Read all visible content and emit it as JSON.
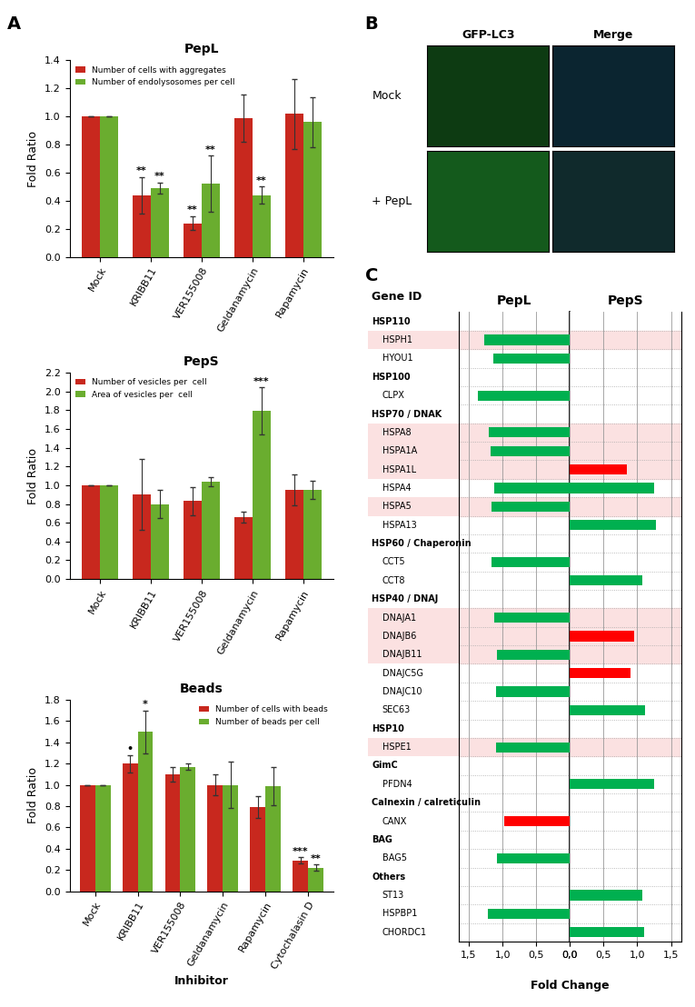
{
  "panel_labels": [
    "A",
    "B",
    "C"
  ],
  "image_panel": {
    "columns": [
      "GFP-LC3",
      "Merge"
    ],
    "rows": [
      "Mock",
      "+ PepL"
    ]
  },
  "chart_data": [
    {
      "type": "bar",
      "title": "PepL",
      "ylabel": "Fold Ratio",
      "legend": "upper left",
      "categories": [
        "Mock",
        "KRIBB11",
        "VER155008",
        "Geldanamycin",
        "Rapamycin"
      ],
      "ylim": [
        0,
        1.4
      ],
      "yticks": [
        {
          "value": 0,
          "label": "0.0"
        },
        0.2,
        0.4,
        0.6,
        0.8,
        {
          "value": 1,
          "label": "1.0"
        },
        1.2,
        1.4
      ],
      "series": [
        {
          "name": "Number of cells with aggregates",
          "color": "#c8281e",
          "values": [
            1.0,
            0.44,
            0.24,
            0.99,
            1.02
          ],
          "errors": [
            0,
            0.13,
            0.05,
            0.17,
            0.25
          ],
          "annotations": [
            null,
            "**",
            "**",
            null,
            null
          ]
        },
        {
          "name": "Number of endolysosomes per cell",
          "color": "#6aad2f",
          "values": [
            1.0,
            0.49,
            0.52,
            0.44,
            0.96
          ],
          "errors": [
            0,
            0.04,
            0.2,
            0.06,
            0.18
          ],
          "annotations": [
            null,
            "**",
            "**",
            "**",
            null
          ]
        }
      ]
    },
    {
      "type": "bar",
      "title": "PepS",
      "ylabel": "Fold Ratio",
      "legend": "upper left",
      "categories": [
        "Mock",
        "KRIBB11",
        "VER155008",
        "Geldanamycin",
        "Rapamycin"
      ],
      "ylim": [
        0,
        2.2
      ],
      "yticks": [
        {
          "value": 0,
          "label": "0.0"
        },
        0.2,
        0.4,
        0.6,
        0.8,
        {
          "value": 1,
          "label": "1.0"
        },
        1.2,
        1.4,
        1.6,
        1.8,
        {
          "value": 2,
          "label": "2.0"
        },
        2.2
      ],
      "series": [
        {
          "name": "Number of vesicles per  cell",
          "color": "#c8281e",
          "values": [
            1.0,
            0.9,
            0.83,
            0.66,
            0.95
          ],
          "errors": [
            0,
            0.38,
            0.15,
            0.06,
            0.16
          ],
          "annotations": [
            null,
            null,
            null,
            null,
            null
          ]
        },
        {
          "name": "Area of vesicles per  cell",
          "color": "#6aad2f",
          "values": [
            1.0,
            0.8,
            1.04,
            1.79,
            0.95
          ],
          "errors": [
            0,
            0.15,
            0.05,
            0.25,
            0.1
          ],
          "annotations": [
            null,
            null,
            null,
            "***",
            null
          ]
        }
      ]
    },
    {
      "type": "bar",
      "title": "Beads",
      "ylabel": "Fold Ratio",
      "xlabel": "Inhibitor",
      "legend": "upper right",
      "categories": [
        "Mock",
        "KRIBB11",
        "VER155008",
        "Geldanamycin",
        "Rapamycin",
        "Cytochalasin D"
      ],
      "ylim": [
        0,
        1.8
      ],
      "yticks": [
        {
          "value": 0,
          "label": "0.0"
        },
        0.2,
        0.4,
        0.6,
        0.8,
        {
          "value": 1,
          "label": "1.0"
        },
        1.2,
        1.4,
        1.6,
        1.8
      ],
      "series": [
        {
          "name": "Number of cells with beads",
          "color": "#c8281e",
          "values": [
            1.0,
            1.2,
            1.1,
            1.0,
            0.79,
            0.29
          ],
          "errors": [
            0,
            0.08,
            0.07,
            0.1,
            0.1,
            0.03
          ],
          "annotations": [
            null,
            "•",
            null,
            null,
            null,
            "***"
          ]
        },
        {
          "name": "Number of beads per cell",
          "color": "#6aad2f",
          "values": [
            1.0,
            1.5,
            1.17,
            1.0,
            0.99,
            0.22
          ],
          "errors": [
            0,
            0.2,
            0.03,
            0.22,
            0.18,
            0.03
          ],
          "annotations": [
            null,
            "*",
            null,
            null,
            null,
            "**"
          ]
        }
      ]
    },
    {
      "type": "bar",
      "orientation": "horizontal",
      "ylabel": "Gene ID",
      "xlabel": "Fold Change",
      "grid": true,
      "xlim": [
        0,
        1.65
      ],
      "xticks": [
        {
          "value": 0,
          "label": "0,0"
        },
        {
          "value": 0.5,
          "label": "0,5"
        },
        {
          "value": 1,
          "label": "1,0"
        },
        {
          "value": 1.5,
          "label": "1,5"
        }
      ],
      "series_names": [
        "PepL",
        "PepS"
      ],
      "highlight_color": "#fbe1e1",
      "groups": [
        {
          "name": "HSP110",
          "genes": [
            {
              "name": "HSPH1",
              "highlight": true,
              "values": [
                1.27,
                null
              ],
              "colors": [
                "#00b050",
                null
              ]
            },
            {
              "name": "HYOU1",
              "highlight": false,
              "values": [
                1.13,
                null
              ],
              "colors": [
                "#00b050",
                null
              ]
            }
          ]
        },
        {
          "name": "HSP100",
          "genes": [
            {
              "name": "CLPX",
              "highlight": false,
              "values": [
                1.37,
                null
              ],
              "colors": [
                "#00b050",
                null
              ]
            }
          ]
        },
        {
          "name": "HSP70 / DNAK",
          "genes": [
            {
              "name": "HSPA8",
              "highlight": true,
              "values": [
                1.2,
                null
              ],
              "colors": [
                "#00b050",
                null
              ]
            },
            {
              "name": "HSPA1A",
              "highlight": true,
              "values": [
                1.18,
                null
              ],
              "colors": [
                "#00b050",
                null
              ]
            },
            {
              "name": "HSPA1L",
              "highlight": true,
              "values": [
                null,
                0.85
              ],
              "colors": [
                null,
                "#ff0000"
              ]
            },
            {
              "name": "HSPA4",
              "highlight": false,
              "values": [
                1.12,
                1.25
              ],
              "colors": [
                "#00b050",
                "#00b050"
              ]
            },
            {
              "name": "HSPA5",
              "highlight": true,
              "values": [
                1.17,
                null
              ],
              "colors": [
                "#00b050",
                null
              ]
            },
            {
              "name": "HSPA13",
              "highlight": false,
              "values": [
                null,
                1.27
              ],
              "colors": [
                null,
                "#00b050"
              ]
            }
          ]
        },
        {
          "name": "HSP60 / Chaperonin",
          "genes": [
            {
              "name": "CCT5",
              "highlight": false,
              "values": [
                1.17,
                null
              ],
              "colors": [
                "#00b050",
                null
              ]
            },
            {
              "name": "CCT8",
              "highlight": false,
              "values": [
                null,
                1.07
              ],
              "colors": [
                null,
                "#00b050"
              ]
            }
          ]
        },
        {
          "name": "HSP40 / DNAJ",
          "genes": [
            {
              "name": "DNAJA1",
              "highlight": true,
              "values": [
                1.12,
                null
              ],
              "colors": [
                "#00b050",
                null
              ]
            },
            {
              "name": "DNAJB6",
              "highlight": true,
              "values": [
                null,
                0.95
              ],
              "colors": [
                null,
                "#ff0000"
              ]
            },
            {
              "name": "DNAJB11",
              "highlight": true,
              "values": [
                1.08,
                null
              ],
              "colors": [
                "#00b050",
                null
              ]
            },
            {
              "name": "DNAJC5G",
              "highlight": false,
              "values": [
                null,
                0.9
              ],
              "colors": [
                null,
                "#ff0000"
              ]
            },
            {
              "name": "DNAJC10",
              "highlight": false,
              "values": [
                1.1,
                null
              ],
              "colors": [
                "#00b050",
                null
              ]
            },
            {
              "name": "SEC63",
              "highlight": false,
              "values": [
                null,
                1.12
              ],
              "colors": [
                null,
                "#00b050"
              ]
            }
          ]
        },
        {
          "name": "HSP10",
          "genes": [
            {
              "name": "HSPE1",
              "highlight": true,
              "values": [
                1.1,
                null
              ],
              "colors": [
                "#00b050",
                null
              ]
            }
          ]
        },
        {
          "name": "GimC",
          "genes": [
            {
              "name": "PFDN4",
              "highlight": false,
              "values": [
                null,
                1.25
              ],
              "colors": [
                null,
                "#00b050"
              ]
            }
          ]
        },
        {
          "name": "Calnexin / calreticulin",
          "genes": [
            {
              "name": "CANX",
              "highlight": false,
              "values": [
                0.98,
                null
              ],
              "colors": [
                "#ff0000",
                null
              ]
            }
          ]
        },
        {
          "name": "BAG",
          "genes": [
            {
              "name": "BAG5",
              "highlight": false,
              "values": [
                1.08,
                null
              ],
              "colors": [
                "#00b050",
                null
              ]
            }
          ]
        },
        {
          "name": "Others",
          "genes": [
            {
              "name": "ST13",
              "highlight": false,
              "values": [
                null,
                1.07
              ],
              "colors": [
                null,
                "#00b050"
              ]
            },
            {
              "name": "HSPBP1",
              "highlight": false,
              "values": [
                1.22,
                null
              ],
              "colors": [
                "#00b050",
                null
              ]
            },
            {
              "name": "CHORDC1",
              "highlight": false,
              "values": [
                null,
                1.1
              ],
              "colors": [
                null,
                "#00b050"
              ]
            }
          ]
        }
      ]
    }
  ]
}
